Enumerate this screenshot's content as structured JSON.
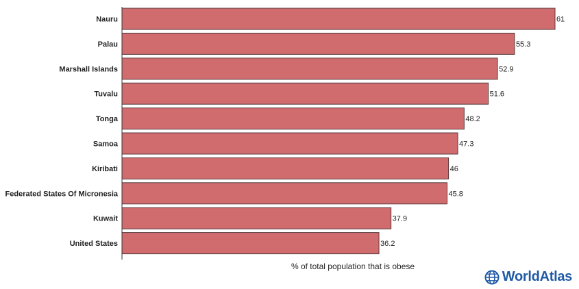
{
  "chart_data": {
    "type": "bar",
    "orientation": "horizontal",
    "categories": [
      "Nauru",
      "Palau",
      "Marshall Islands",
      "Tuvalu",
      "Tonga",
      "Samoa",
      "Kiribati",
      "Federated States Of Micronesia",
      "Kuwait",
      "United States"
    ],
    "values": [
      61,
      55.3,
      52.9,
      51.6,
      48.2,
      47.3,
      46,
      45.8,
      37.9,
      36.2
    ],
    "value_labels": [
      "61",
      "55.3",
      "52.9",
      "51.6",
      "48.2",
      "47.3",
      "46",
      "45.8",
      "37.9",
      "36.2"
    ],
    "title": "",
    "xlabel": "% of total population that is obese",
    "ylabel": "",
    "xlim": [
      0,
      61
    ],
    "grid": false,
    "legend": "none",
    "colors": {
      "bar": "#d06b6e",
      "bar_edge": "#5a3a3c",
      "axis": "#333333"
    }
  },
  "branding": {
    "logo_text": "WorldAtlas",
    "logo_icon": "globe-icon",
    "logo_color": "#1f5aa6"
  }
}
